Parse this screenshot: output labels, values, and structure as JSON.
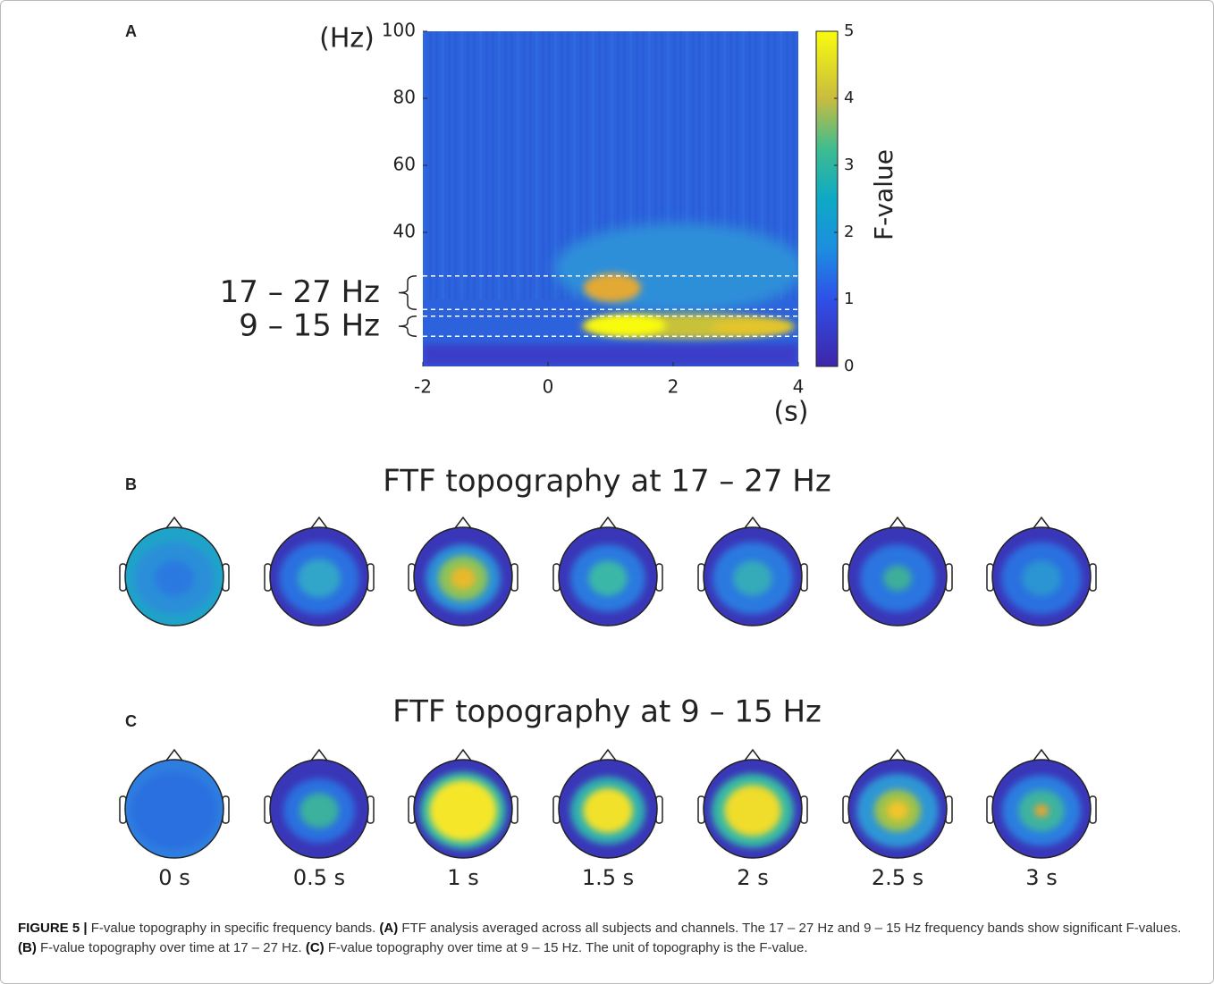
{
  "panel_a": {
    "label": "A",
    "y_unit": "(Hz)",
    "x_unit": "(s)",
    "ylim": [
      0,
      100
    ],
    "yticks": [
      100,
      80,
      60,
      40
    ],
    "xlim": [
      -2,
      4
    ],
    "xticks": [
      -2,
      0,
      2,
      4
    ],
    "colorbar": {
      "label": "F-value",
      "lim": [
        0,
        5
      ],
      "ticks": [
        0,
        1,
        2,
        3,
        4,
        5
      ]
    },
    "bands": [
      {
        "label": "17 – 27 Hz",
        "low": 17,
        "high": 27
      },
      {
        "label": "9 – 15 Hz",
        "low": 9,
        "high": 15
      }
    ]
  },
  "panel_b": {
    "label": "B",
    "title": "FTF topography at 17 – 27 Hz"
  },
  "panel_c": {
    "label": "C",
    "title": "FTF topography at 9 – 15 Hz",
    "times": [
      "0 s",
      "0.5 s",
      "1 s",
      "1.5 s",
      "2 s",
      "2.5 s",
      "3 s"
    ]
  },
  "caption": [
    {
      "text": "FIGURE 5 |",
      "bold": true
    },
    {
      "text": " F-value topography in specific frequency bands. ",
      "bold": false
    },
    {
      "text": "(A)",
      "bold": true
    },
    {
      "text": " FTF analysis averaged across all subjects and channels. The 17 – 27 Hz and 9 – 15 Hz frequency bands show significant F-values. ",
      "bold": false
    },
    {
      "text": "(B)",
      "bold": true
    },
    {
      "text": " F-value topography over time at 17 – 27 Hz. ",
      "bold": false
    },
    {
      "text": "(C)",
      "bold": true
    },
    {
      "text": " F-value topography over time at 9 – 15 Hz. The unit of topography is the F-value.",
      "bold": false
    }
  ]
}
